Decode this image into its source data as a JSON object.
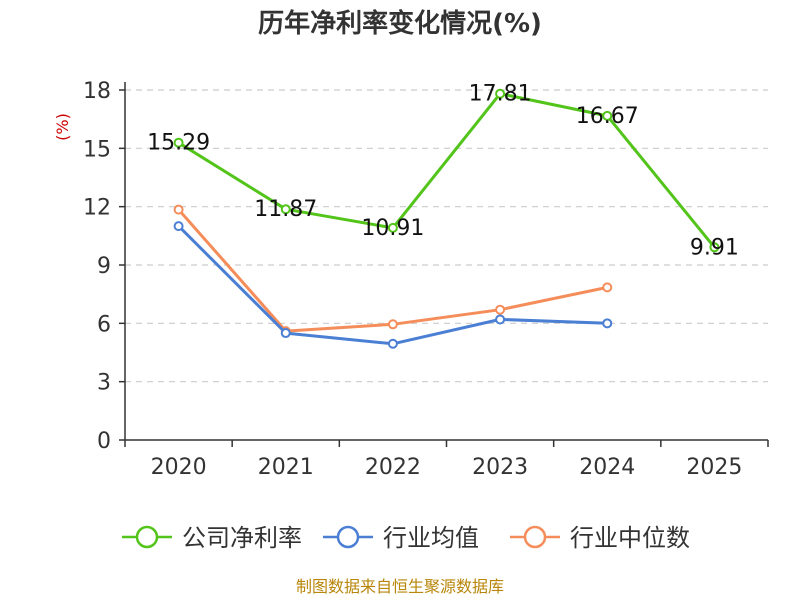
{
  "chart_data": {
    "type": "line",
    "title": "历年净利率变化情况(%)",
    "ylabel": "(%)",
    "xlabel": "",
    "categories": [
      "2020",
      "2021",
      "2022",
      "2023",
      "2024",
      "2025"
    ],
    "ylim": [
      0,
      18
    ],
    "yticks": [
      "0",
      "3",
      "6",
      "9",
      "12",
      "15",
      "18"
    ],
    "grid": true,
    "legend_position": "bottom",
    "series": [
      {
        "name": "公司净利率",
        "color": "#52c41a",
        "values": [
          15.29,
          11.87,
          10.91,
          17.81,
          16.67,
          9.91
        ],
        "labels": [
          "15.29",
          "11.87",
          "10.91",
          "17.81",
          "16.67",
          "9.91"
        ]
      },
      {
        "name": "行业均值",
        "color": "#4a7fd4",
        "values": [
          11.0,
          5.5,
          4.95,
          6.2,
          6.0,
          null
        ]
      },
      {
        "name": "行业中位数",
        "color": "#f58d5a",
        "values": [
          11.85,
          5.6,
          5.95,
          6.7,
          7.85,
          null
        ]
      }
    ],
    "source": "制图数据来自恒生聚源数据库"
  }
}
